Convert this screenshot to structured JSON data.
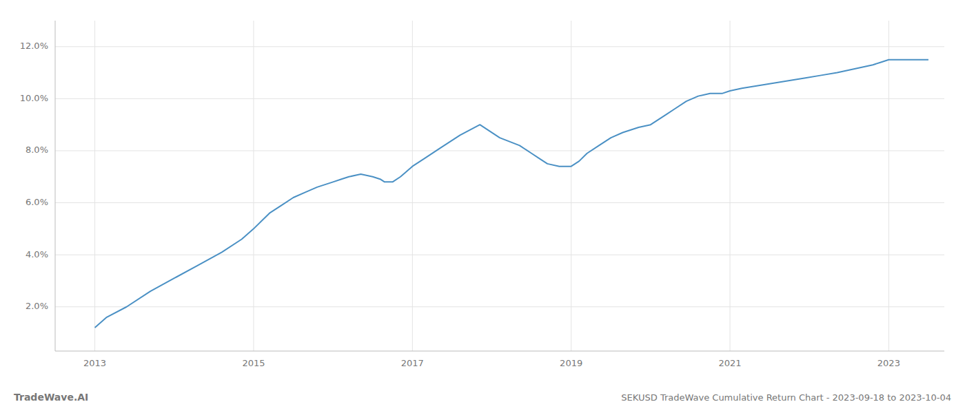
{
  "chart_data": {
    "type": "line",
    "title": "SEKUSD TradeWave Cumulative Return Chart - 2023-09-18 to 2023-10-04",
    "annotations": [
      "TradeWave.AI"
    ],
    "color": "#4a90c4",
    "grid": true,
    "xlim": [
      2012.5,
      2023.7
    ],
    "ylim": [
      0.003,
      0.13
    ],
    "xticks": [
      2013,
      2015,
      2017,
      2019,
      2021,
      2023
    ],
    "yticks": [
      {
        "value": 0.02,
        "label": "2.0%"
      },
      {
        "value": 0.04,
        "label": "4.0%"
      },
      {
        "value": 0.06,
        "label": "6.0%"
      },
      {
        "value": 0.08,
        "label": "8.0%"
      },
      {
        "value": 0.1,
        "label": "10.0%"
      },
      {
        "value": 0.12,
        "label": "12.0%"
      }
    ],
    "x": [
      2013.0,
      2013.15,
      2013.4,
      2013.7,
      2014.0,
      2014.3,
      2014.6,
      2014.85,
      2015.0,
      2015.1,
      2015.2,
      2015.35,
      2015.5,
      2015.65,
      2015.8,
      2016.0,
      2016.1,
      2016.2,
      2016.35,
      2016.5,
      2016.6,
      2016.65,
      2016.7,
      2016.75,
      2016.85,
      2017.0,
      2017.15,
      2017.35,
      2017.6,
      2017.85,
      2018.1,
      2018.35,
      2018.5,
      2018.6,
      2018.7,
      2018.85,
      2019.0,
      2019.1,
      2019.2,
      2019.35,
      2019.5,
      2019.65,
      2019.85,
      2020.0,
      2020.1,
      2020.2,
      2020.3,
      2020.45,
      2020.6,
      2020.75,
      2020.9,
      2021.0,
      2021.15,
      2021.35,
      2021.55,
      2021.75,
      2021.95,
      2022.15,
      2022.35,
      2022.5,
      2022.65,
      2022.8,
      2022.9,
      2023.0,
      2023.15,
      2023.35,
      2023.5
    ],
    "values": [
      0.012,
      0.016,
      0.02,
      0.026,
      0.031,
      0.036,
      0.041,
      0.046,
      0.05,
      0.053,
      0.056,
      0.059,
      0.062,
      0.064,
      0.066,
      0.068,
      0.069,
      0.07,
      0.071,
      0.07,
      0.069,
      0.068,
      0.068,
      0.068,
      0.07,
      0.074,
      0.077,
      0.081,
      0.086,
      0.09,
      0.085,
      0.082,
      0.079,
      0.077,
      0.075,
      0.074,
      0.074,
      0.076,
      0.079,
      0.082,
      0.085,
      0.087,
      0.089,
      0.09,
      0.092,
      0.094,
      0.096,
      0.099,
      0.101,
      0.102,
      0.102,
      0.103,
      0.104,
      0.105,
      0.106,
      0.107,
      0.108,
      0.109,
      0.11,
      0.111,
      0.112,
      0.113,
      0.114,
      0.115,
      0.115,
      0.115,
      0.115
    ]
  }
}
